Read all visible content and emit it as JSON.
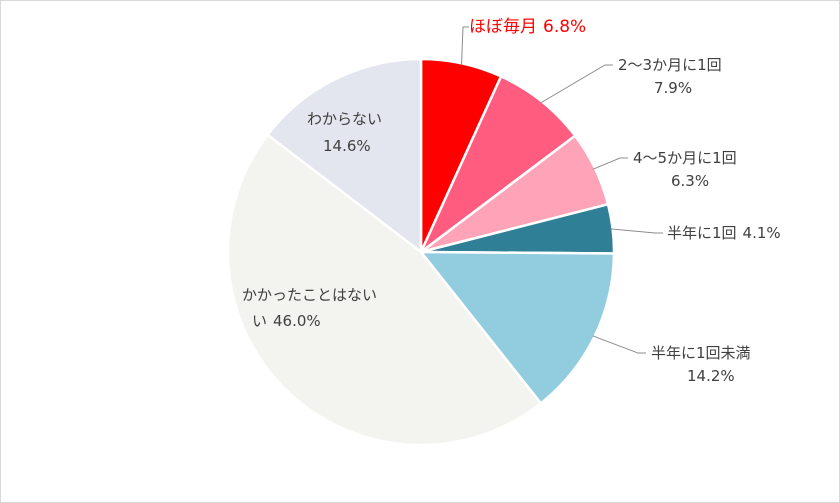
{
  "chart_data": {
    "type": "pie",
    "start_angle_deg": 0,
    "direction": "clockwise",
    "slices": [
      {
        "label": "ほぼ毎月",
        "value_text": "6.8%",
        "value": 6.8,
        "color": "#ff0000",
        "label_color": "#ff0000"
      },
      {
        "label": "2～3か月に1回",
        "value_text": "7.9%",
        "value": 7.9,
        "color": "#ff5c7f",
        "label_color": "#404040"
      },
      {
        "label": "4～5か月に1回",
        "value_text": "6.3%",
        "value": 6.3,
        "color": "#ffa3b8",
        "label_color": "#404040"
      },
      {
        "label": "半年に1回",
        "value_text": "4.1%",
        "value": 4.1,
        "color": "#2f7f97",
        "label_color": "#404040"
      },
      {
        "label": "半年に1回未満",
        "value_text": "14.2%",
        "value": 14.2,
        "color": "#92cddf",
        "label_color": "#404040"
      },
      {
        "label": "かかったことはない",
        "label_line2": "い",
        "value_text": "46.0%",
        "value": 46.0,
        "color": "#f3f3ef",
        "label_color": "#404040"
      },
      {
        "label": "わからない",
        "value_text": "14.6%",
        "value": 14.6,
        "color": "#e3e6ee",
        "label_color": "#404040"
      }
    ],
    "legend": "none",
    "title": ""
  }
}
